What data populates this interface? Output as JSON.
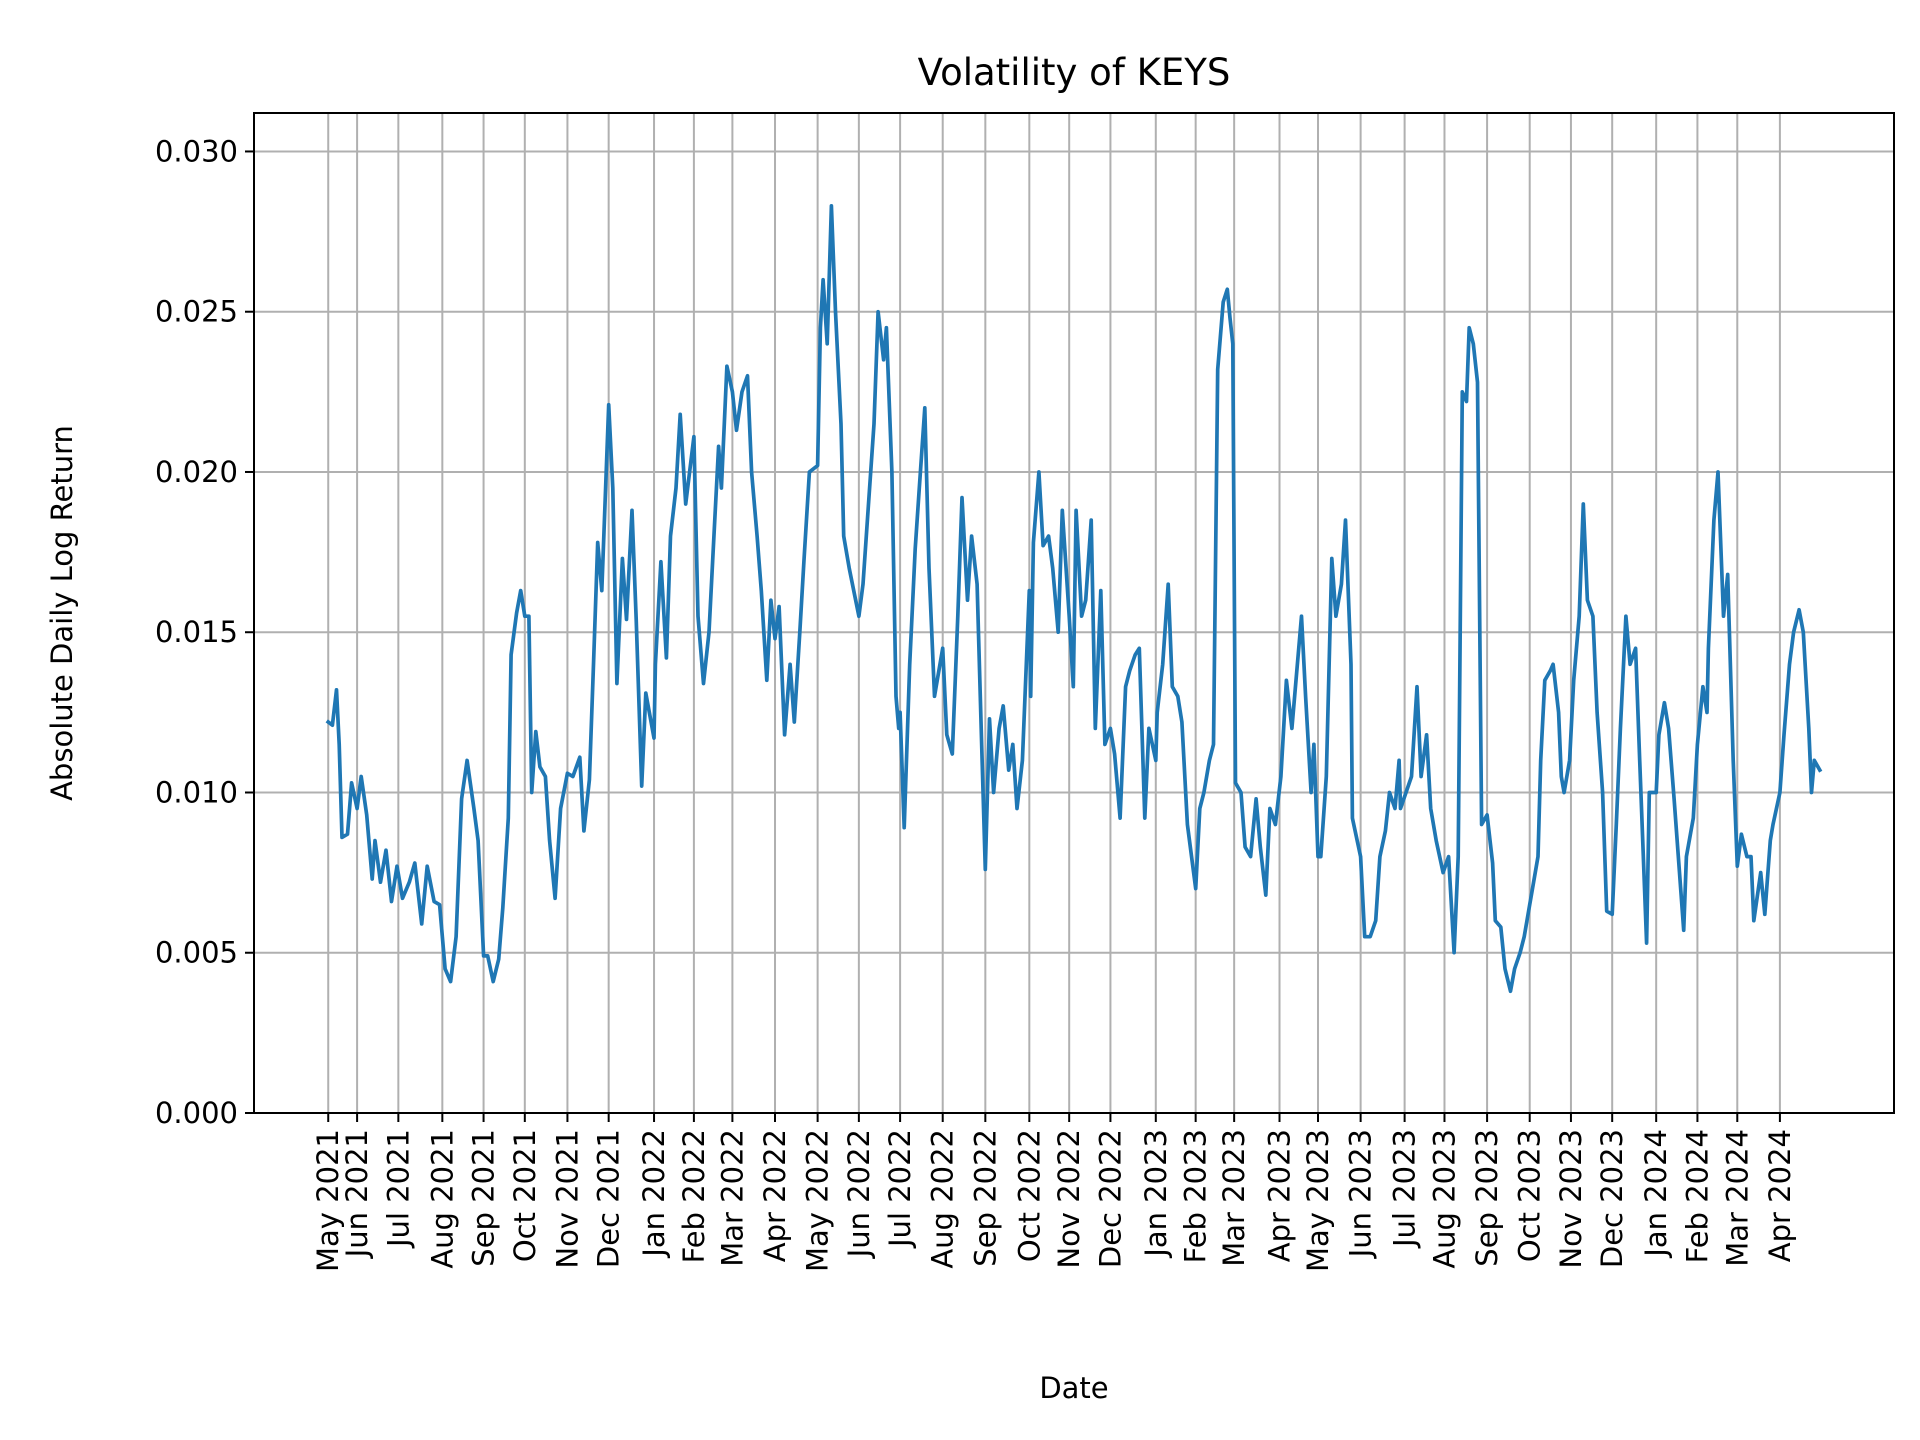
{
  "chart_data": {
    "type": "line",
    "title": "Volatility of KEYS",
    "xlabel": "Date",
    "ylabel": "Absolute Daily Log Return",
    "ylim": [
      0,
      0.0312
    ],
    "xlim": [
      "2021-03-18",
      "2024-06-23"
    ],
    "grid": true,
    "line_color": "#1f77b4",
    "grid_color": "#b0b0b0",
    "yticks": [
      0.0,
      0.005,
      0.01,
      0.015,
      0.02,
      0.025,
      0.03
    ],
    "ytick_labels": [
      "0.000",
      "0.005",
      "0.010",
      "0.015",
      "0.020",
      "0.025",
      "0.030"
    ],
    "xticks": [
      "2021-05-11",
      "2021-06-01",
      "2021-07-01",
      "2021-08-02",
      "2021-09-01",
      "2021-10-01",
      "2021-11-01",
      "2021-12-01",
      "2022-01-03",
      "2022-02-01",
      "2022-03-01",
      "2022-04-01",
      "2022-05-02",
      "2022-06-01",
      "2022-07-01",
      "2022-08-01",
      "2022-09-01",
      "2022-10-03",
      "2022-11-01",
      "2022-12-01",
      "2023-01-03",
      "2023-02-01",
      "2023-03-01",
      "2023-04-03",
      "2023-05-01",
      "2023-06-01",
      "2023-07-03",
      "2023-08-01",
      "2023-09-01",
      "2023-10-02",
      "2023-11-01",
      "2023-12-01",
      "2024-01-02",
      "2024-02-01",
      "2024-03-01",
      "2024-04-01"
    ],
    "xtick_labels": [
      "May 2021",
      "Jun 2021",
      "Jul 2021",
      "Aug 2021",
      "Sep 2021",
      "Oct 2021",
      "Nov 2021",
      "Dec 2021",
      "Jan 2022",
      "Feb 2022",
      "Mar 2022",
      "Apr 2022",
      "May 2022",
      "Jun 2022",
      "Jul 2022",
      "Aug 2022",
      "Sep 2022",
      "Oct 2022",
      "Nov 2022",
      "Dec 2022",
      "Jan 2023",
      "Feb 2023",
      "Mar 2023",
      "Apr 2023",
      "May 2023",
      "Jun 2023",
      "Jul 2023",
      "Aug 2023",
      "Sep 2023",
      "Oct 2023",
      "Nov 2023",
      "Dec 2023",
      "Jan 2024",
      "Feb 2024",
      "Mar 2024",
      "Apr 2024"
    ],
    "points": [
      [
        "2021-05-11",
        0.0122
      ],
      [
        "2021-05-14",
        0.0121
      ],
      [
        "2021-05-17",
        0.0132
      ],
      [
        "2021-05-19",
        0.0115
      ],
      [
        "2021-05-21",
        0.0086
      ],
      [
        "2021-05-25",
        0.0087
      ],
      [
        "2021-05-28",
        0.0103
      ],
      [
        "2021-06-01",
        0.0095
      ],
      [
        "2021-06-04",
        0.0105
      ],
      [
        "2021-06-08",
        0.0093
      ],
      [
        "2021-06-12",
        0.0073
      ],
      [
        "2021-06-14",
        0.0085
      ],
      [
        "2021-06-18",
        0.0072
      ],
      [
        "2021-06-22",
        0.0082
      ],
      [
        "2021-06-26",
        0.0066
      ],
      [
        "2021-06-30",
        0.0077
      ],
      [
        "2021-07-04",
        0.0067
      ],
      [
        "2021-07-09",
        0.0072
      ],
      [
        "2021-07-13",
        0.0078
      ],
      [
        "2021-07-18",
        0.0059
      ],
      [
        "2021-07-22",
        0.0077
      ],
      [
        "2021-07-27",
        0.0066
      ],
      [
        "2021-07-31",
        0.0065
      ],
      [
        "2021-08-04",
        0.0045
      ],
      [
        "2021-08-08",
        0.0041
      ],
      [
        "2021-08-12",
        0.0055
      ],
      [
        "2021-08-16",
        0.0098
      ],
      [
        "2021-08-20",
        0.011
      ],
      [
        "2021-08-25",
        0.0095
      ],
      [
        "2021-08-28",
        0.0085
      ],
      [
        "2021-09-01",
        0.0049
      ],
      [
        "2021-09-04",
        0.0049
      ],
      [
        "2021-09-08",
        0.0041
      ],
      [
        "2021-09-12",
        0.0048
      ],
      [
        "2021-09-15",
        0.0064
      ],
      [
        "2021-09-19",
        0.0092
      ],
      [
        "2021-09-21",
        0.0143
      ],
      [
        "2021-09-25",
        0.0156
      ],
      [
        "2021-09-28",
        0.0163
      ],
      [
        "2021-10-01",
        0.0155
      ],
      [
        "2021-10-04",
        0.0155
      ],
      [
        "2021-10-06",
        0.01
      ],
      [
        "2021-10-09",
        0.0119
      ],
      [
        "2021-10-12",
        0.0108
      ],
      [
        "2021-10-16",
        0.0105
      ],
      [
        "2021-10-19",
        0.0085
      ],
      [
        "2021-10-23",
        0.0067
      ],
      [
        "2021-10-27",
        0.0095
      ],
      [
        "2021-11-01",
        0.0106
      ],
      [
        "2021-11-05",
        0.0105
      ],
      [
        "2021-11-10",
        0.0111
      ],
      [
        "2021-11-13",
        0.0088
      ],
      [
        "2021-11-17",
        0.0104
      ],
      [
        "2021-11-20",
        0.014
      ],
      [
        "2021-11-23",
        0.0178
      ],
      [
        "2021-11-26",
        0.0163
      ],
      [
        "2021-12-01",
        0.0221
      ],
      [
        "2021-12-04",
        0.0195
      ],
      [
        "2021-12-07",
        0.0134
      ],
      [
        "2021-12-11",
        0.0173
      ],
      [
        "2021-12-14",
        0.0154
      ],
      [
        "2021-12-18",
        0.0188
      ],
      [
        "2021-12-21",
        0.0154
      ],
      [
        "2021-12-25",
        0.0102
      ],
      [
        "2021-12-28",
        0.0131
      ],
      [
        "2022-01-03",
        0.0117
      ],
      [
        "2022-01-04",
        0.014
      ],
      [
        "2022-01-08",
        0.0172
      ],
      [
        "2022-01-12",
        0.0142
      ],
      [
        "2022-01-15",
        0.018
      ],
      [
        "2022-01-19",
        0.0195
      ],
      [
        "2022-01-22",
        0.0218
      ],
      [
        "2022-01-26",
        0.019
      ],
      [
        "2022-02-01",
        0.0211
      ],
      [
        "2022-02-04",
        0.0155
      ],
      [
        "2022-02-08",
        0.0134
      ],
      [
        "2022-02-12",
        0.015
      ],
      [
        "2022-02-15",
        0.0175
      ],
      [
        "2022-02-19",
        0.0208
      ],
      [
        "2022-02-21",
        0.0195
      ],
      [
        "2022-02-25",
        0.0233
      ],
      [
        "2022-03-01",
        0.0225
      ],
      [
        "2022-03-04",
        0.0213
      ],
      [
        "2022-03-08",
        0.0225
      ],
      [
        "2022-03-12",
        0.023
      ],
      [
        "2022-03-15",
        0.02
      ],
      [
        "2022-03-19",
        0.018
      ],
      [
        "2022-03-22",
        0.0163
      ],
      [
        "2022-03-26",
        0.0135
      ],
      [
        "2022-03-29",
        0.016
      ],
      [
        "2022-04-01",
        0.0148
      ],
      [
        "2022-04-04",
        0.0158
      ],
      [
        "2022-04-08",
        0.0118
      ],
      [
        "2022-04-12",
        0.014
      ],
      [
        "2022-04-15",
        0.0122
      ],
      [
        "2022-04-19",
        0.015
      ],
      [
        "2022-04-22",
        0.0172
      ],
      [
        "2022-04-26",
        0.02
      ],
      [
        "2022-05-02",
        0.0202
      ],
      [
        "2022-05-04",
        0.0245
      ],
      [
        "2022-05-06",
        0.026
      ],
      [
        "2022-05-09",
        0.024
      ],
      [
        "2022-05-12",
        0.0283
      ],
      [
        "2022-05-15",
        0.025
      ],
      [
        "2022-05-19",
        0.0215
      ],
      [
        "2022-05-21",
        0.018
      ],
      [
        "2022-05-25",
        0.017
      ],
      [
        "2022-06-01",
        0.0155
      ],
      [
        "2022-06-04",
        0.0165
      ],
      [
        "2022-06-08",
        0.019
      ],
      [
        "2022-06-12",
        0.0215
      ],
      [
        "2022-06-15",
        0.025
      ],
      [
        "2022-06-19",
        0.0235
      ],
      [
        "2022-06-21",
        0.0245
      ],
      [
        "2022-06-25",
        0.02
      ],
      [
        "2022-06-28",
        0.013
      ],
      [
        "2022-06-30",
        0.012
      ],
      [
        "2022-07-01",
        0.0125
      ],
      [
        "2022-07-04",
        0.0089
      ],
      [
        "2022-07-08",
        0.014
      ],
      [
        "2022-07-12",
        0.0176
      ],
      [
        "2022-07-15",
        0.0195
      ],
      [
        "2022-07-19",
        0.022
      ],
      [
        "2022-07-22",
        0.017
      ],
      [
        "2022-07-26",
        0.013
      ],
      [
        "2022-08-01",
        0.0145
      ],
      [
        "2022-08-04",
        0.0118
      ],
      [
        "2022-08-08",
        0.0112
      ],
      [
        "2022-08-12",
        0.0155
      ],
      [
        "2022-08-15",
        0.0192
      ],
      [
        "2022-08-19",
        0.016
      ],
      [
        "2022-08-22",
        0.018
      ],
      [
        "2022-08-26",
        0.0165
      ],
      [
        "2022-08-29",
        0.012
      ],
      [
        "2022-09-01",
        0.0076
      ],
      [
        "2022-09-04",
        0.0123
      ],
      [
        "2022-09-07",
        0.01
      ],
      [
        "2022-09-11",
        0.012
      ],
      [
        "2022-09-14",
        0.0127
      ],
      [
        "2022-09-18",
        0.0107
      ],
      [
        "2022-09-21",
        0.0115
      ],
      [
        "2022-09-24",
        0.0095
      ],
      [
        "2022-09-28",
        0.011
      ],
      [
        "2022-10-03",
        0.0163
      ],
      [
        "2022-10-04",
        0.013
      ],
      [
        "2022-10-06",
        0.0178
      ],
      [
        "2022-10-10",
        0.02
      ],
      [
        "2022-10-13",
        0.0177
      ],
      [
        "2022-10-17",
        0.018
      ],
      [
        "2022-10-20",
        0.017
      ],
      [
        "2022-10-24",
        0.015
      ],
      [
        "2022-10-27",
        0.0188
      ],
      [
        "2022-11-01",
        0.0155
      ],
      [
        "2022-11-04",
        0.0133
      ],
      [
        "2022-11-06",
        0.0188
      ],
      [
        "2022-11-10",
        0.0155
      ],
      [
        "2022-11-13",
        0.016
      ],
      [
        "2022-11-17",
        0.0185
      ],
      [
        "2022-11-20",
        0.012
      ],
      [
        "2022-11-24",
        0.0163
      ],
      [
        "2022-11-27",
        0.0115
      ],
      [
        "2022-12-01",
        0.012
      ],
      [
        "2022-12-04",
        0.0112
      ],
      [
        "2022-12-08",
        0.0092
      ],
      [
        "2022-12-12",
        0.0133
      ],
      [
        "2022-12-15",
        0.0138
      ],
      [
        "2022-12-19",
        0.0143
      ],
      [
        "2022-12-22",
        0.0145
      ],
      [
        "2022-12-26",
        0.0092
      ],
      [
        "2022-12-29",
        0.012
      ],
      [
        "2023-01-03",
        0.011
      ],
      [
        "2023-01-04",
        0.0125
      ],
      [
        "2023-01-08",
        0.014
      ],
      [
        "2023-01-12",
        0.0165
      ],
      [
        "2023-01-15",
        0.0133
      ],
      [
        "2023-01-19",
        0.013
      ],
      [
        "2023-01-22",
        0.0122
      ],
      [
        "2023-01-26",
        0.009
      ],
      [
        "2023-02-01",
        0.007
      ],
      [
        "2023-02-04",
        0.0095
      ],
      [
        "2023-02-07",
        0.01
      ],
      [
        "2023-02-11",
        0.011
      ],
      [
        "2023-02-14",
        0.0115
      ],
      [
        "2023-02-17",
        0.0232
      ],
      [
        "2023-02-21",
        0.0253
      ],
      [
        "2023-02-24",
        0.0257
      ],
      [
        "2023-02-26",
        0.0248
      ],
      [
        "2023-02-28",
        0.024
      ],
      [
        "2023-03-02",
        0.0103
      ],
      [
        "2023-03-06",
        0.01
      ],
      [
        "2023-03-09",
        0.0083
      ],
      [
        "2023-03-13",
        0.008
      ],
      [
        "2023-03-17",
        0.0098
      ],
      [
        "2023-03-20",
        0.0083
      ],
      [
        "2023-03-24",
        0.0068
      ],
      [
        "2023-03-27",
        0.0095
      ],
      [
        "2023-03-31",
        0.009
      ],
      [
        "2023-04-04",
        0.0105
      ],
      [
        "2023-04-08",
        0.0135
      ],
      [
        "2023-04-12",
        0.012
      ],
      [
        "2023-04-15",
        0.0135
      ],
      [
        "2023-04-19",
        0.0155
      ],
      [
        "2023-04-22",
        0.013
      ],
      [
        "2023-04-26",
        0.01
      ],
      [
        "2023-04-28",
        0.0115
      ],
      [
        "2023-05-01",
        0.008
      ],
      [
        "2023-05-03",
        0.008
      ],
      [
        "2023-05-07",
        0.0105
      ],
      [
        "2023-05-11",
        0.0173
      ],
      [
        "2023-05-14",
        0.0155
      ],
      [
        "2023-05-18",
        0.0165
      ],
      [
        "2023-05-21",
        0.0185
      ],
      [
        "2023-05-25",
        0.014
      ],
      [
        "2023-05-26",
        0.0092
      ],
      [
        "2023-06-01",
        0.008
      ],
      [
        "2023-06-04",
        0.0055
      ],
      [
        "2023-06-08",
        0.0055
      ],
      [
        "2023-06-12",
        0.006
      ],
      [
        "2023-06-15",
        0.008
      ],
      [
        "2023-06-19",
        0.0088
      ],
      [
        "2023-06-22",
        0.01
      ],
      [
        "2023-06-26",
        0.0095
      ],
      [
        "2023-06-29",
        0.011
      ],
      [
        "2023-06-30",
        0.0095
      ],
      [
        "2023-07-04",
        0.01
      ],
      [
        "2023-07-08",
        0.0105
      ],
      [
        "2023-07-12",
        0.0133
      ],
      [
        "2023-07-15",
        0.0105
      ],
      [
        "2023-07-19",
        0.0118
      ],
      [
        "2023-07-22",
        0.0095
      ],
      [
        "2023-07-26",
        0.0085
      ],
      [
        "2023-07-31",
        0.0075
      ],
      [
        "2023-08-04",
        0.008
      ],
      [
        "2023-08-08",
        0.005
      ],
      [
        "2023-08-11",
        0.008
      ],
      [
        "2023-08-14",
        0.0225
      ],
      [
        "2023-08-17",
        0.0222
      ],
      [
        "2023-08-19",
        0.0245
      ],
      [
        "2023-08-22",
        0.024
      ],
      [
        "2023-08-25",
        0.0228
      ],
      [
        "2023-08-28",
        0.009
      ],
      [
        "2023-09-01",
        0.0093
      ],
      [
        "2023-09-05",
        0.0078
      ],
      [
        "2023-09-07",
        0.006
      ],
      [
        "2023-09-11",
        0.0058
      ],
      [
        "2023-09-14",
        0.0045
      ],
      [
        "2023-09-18",
        0.0038
      ],
      [
        "2023-09-21",
        0.0045
      ],
      [
        "2023-09-25",
        0.005
      ],
      [
        "2023-09-28",
        0.0055
      ],
      [
        "2023-10-02",
        0.0065
      ],
      [
        "2023-10-04",
        0.007
      ],
      [
        "2023-10-08",
        0.008
      ],
      [
        "2023-10-10",
        0.011
      ],
      [
        "2023-10-13",
        0.0135
      ],
      [
        "2023-10-17",
        0.0138
      ],
      [
        "2023-10-19",
        0.014
      ],
      [
        "2023-10-23",
        0.0125
      ],
      [
        "2023-10-25",
        0.0105
      ],
      [
        "2023-10-27",
        0.01
      ],
      [
        "2023-10-31",
        0.011
      ],
      [
        "2023-11-03",
        0.0135
      ],
      [
        "2023-11-07",
        0.0155
      ],
      [
        "2023-11-10",
        0.019
      ],
      [
        "2023-11-13",
        0.016
      ],
      [
        "2023-11-17",
        0.0155
      ],
      [
        "2023-11-20",
        0.0125
      ],
      [
        "2023-11-24",
        0.01
      ],
      [
        "2023-11-27",
        0.0063
      ],
      [
        "2023-12-01",
        0.0062
      ],
      [
        "2023-12-04",
        0.009
      ],
      [
        "2023-12-07",
        0.012
      ],
      [
        "2023-12-11",
        0.0155
      ],
      [
        "2023-12-14",
        0.014
      ],
      [
        "2023-12-18",
        0.0145
      ],
      [
        "2023-12-21",
        0.011
      ],
      [
        "2023-12-26",
        0.0053
      ],
      [
        "2023-12-28",
        0.01
      ],
      [
        "2024-01-02",
        0.01
      ],
      [
        "2024-01-04",
        0.0118
      ],
      [
        "2024-01-08",
        0.0128
      ],
      [
        "2024-01-11",
        0.012
      ],
      [
        "2024-01-15",
        0.0098
      ],
      [
        "2024-01-19",
        0.0075
      ],
      [
        "2024-01-22",
        0.0057
      ],
      [
        "2024-01-24",
        0.008
      ],
      [
        "2024-01-29",
        0.0092
      ],
      [
        "2024-02-01",
        0.0115
      ],
      [
        "2024-02-05",
        0.0133
      ],
      [
        "2024-02-08",
        0.0125
      ],
      [
        "2024-02-09",
        0.0145
      ],
      [
        "2024-02-13",
        0.0185
      ],
      [
        "2024-02-16",
        0.02
      ],
      [
        "2024-02-20",
        0.0155
      ],
      [
        "2024-02-23",
        0.0168
      ],
      [
        "2024-02-27",
        0.011
      ],
      [
        "2024-03-01",
        0.0077
      ],
      [
        "2024-03-04",
        0.0087
      ],
      [
        "2024-03-08",
        0.008
      ],
      [
        "2024-03-11",
        0.008
      ],
      [
        "2024-03-13",
        0.006
      ],
      [
        "2024-03-18",
        0.0075
      ],
      [
        "2024-03-21",
        0.0062
      ],
      [
        "2024-03-25",
        0.0085
      ],
      [
        "2024-03-27",
        0.009
      ],
      [
        "2024-04-01",
        0.01
      ],
      [
        "2024-04-04",
        0.0118
      ],
      [
        "2024-04-08",
        0.014
      ],
      [
        "2024-04-11",
        0.015
      ],
      [
        "2024-04-15",
        0.0157
      ],
      [
        "2024-04-18",
        0.015
      ],
      [
        "2024-04-22",
        0.012
      ],
      [
        "2024-04-24",
        0.01
      ],
      [
        "2024-04-26",
        0.011
      ],
      [
        "2024-04-30",
        0.0107
      ]
    ]
  }
}
